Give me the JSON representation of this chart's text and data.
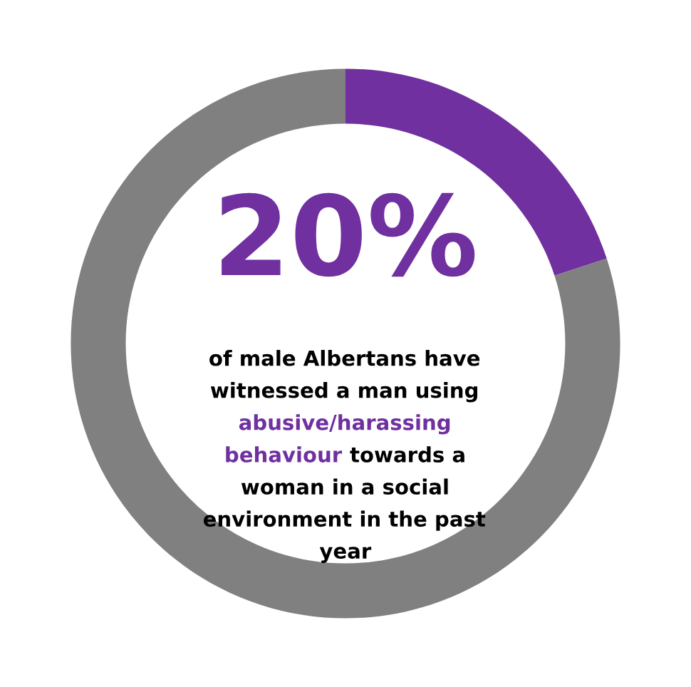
{
  "chart_data": {
    "type": "donut",
    "categories": [
      null,
      null
    ],
    "values": [
      20,
      80
    ],
    "colors": [
      "#7030a0",
      "#808080"
    ],
    "annotations": [
      "20%",
      "of male Albertans have\nwitnessed a man using\n",
      "abusive/harassing\nbehaviour",
      " towards a\nwoman in a social\nenvironment in the past\nyear"
    ]
  }
}
